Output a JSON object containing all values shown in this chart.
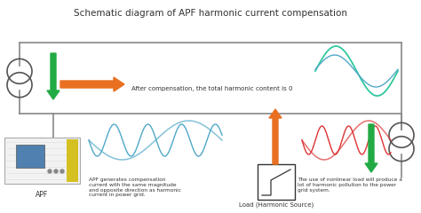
{
  "title": "Schematic diagram of APF harmonic current compensation",
  "title_fontsize": 7.5,
  "bg_color": "#ffffff",
  "fig_size": [
    4.74,
    2.4
  ],
  "dpi": 100,
  "colors": {
    "green": "#22aa44",
    "orange": "#e87020",
    "blue": "#50a8c8",
    "teal": "#30c8a0",
    "red": "#dd3333",
    "gray": "#888888",
    "dark": "#333333",
    "line": "#888888",
    "transformer": "#555555"
  },
  "text": {
    "compensation": "After compensation, the total harmonic content is 0",
    "apf_desc": "APF generates compensation\ncurrent with the same magnitude\nand opposite direction as harmonic\ncurrent in power grid.",
    "load_desc": "The use of nonlinear load will produce a\nlot of harmonic pollution to the power\ngrid system.",
    "apf_label": "APF",
    "load_label": "Load (Harmonic Source)"
  }
}
